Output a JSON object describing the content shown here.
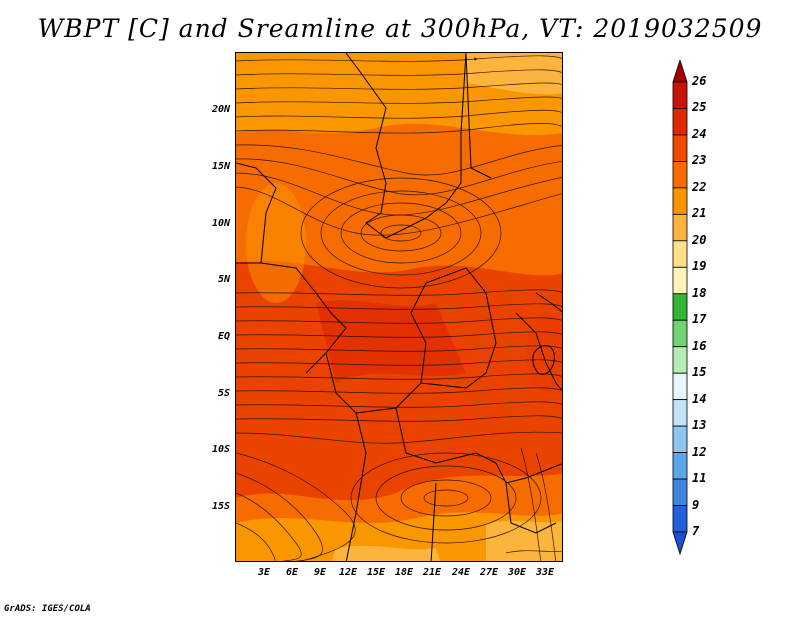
{
  "title": "WBPT [C] and Sreamline at 300hPa, VT: 2019032509",
  "footer": "GrADS: IGES/COLA",
  "map": {
    "variable": "WBPT",
    "units": "C",
    "level": "300hPa",
    "valid_time": "2019032509",
    "lat_labels": [
      "20N",
      "15N",
      "10N",
      "5N",
      "EQ",
      "5S",
      "10S",
      "15S"
    ],
    "lon_labels": [
      "3E",
      "6E",
      "9E",
      "12E",
      "15E",
      "18E",
      "21E",
      "24E",
      "27E",
      "30E",
      "33E"
    ]
  },
  "colorbar": {
    "labels": [
      "26",
      "25",
      "24",
      "23",
      "22",
      "21",
      "20",
      "19",
      "18",
      "17",
      "16",
      "15",
      "14",
      "13",
      "12",
      "11",
      "9",
      "7"
    ],
    "colors": [
      "#a50000",
      "#c81400",
      "#e02800",
      "#f04a00",
      "#f66c00",
      "#fa9600",
      "#fcb43c",
      "#fde08a",
      "#fff5b8",
      "#33b633",
      "#6fd36f",
      "#b4ecb4",
      "#e5f7fc",
      "#c0e3f7",
      "#8cc6f0",
      "#5aa6e8",
      "#3c86e0",
      "#2060d8",
      "#1b4fcf"
    ]
  }
}
